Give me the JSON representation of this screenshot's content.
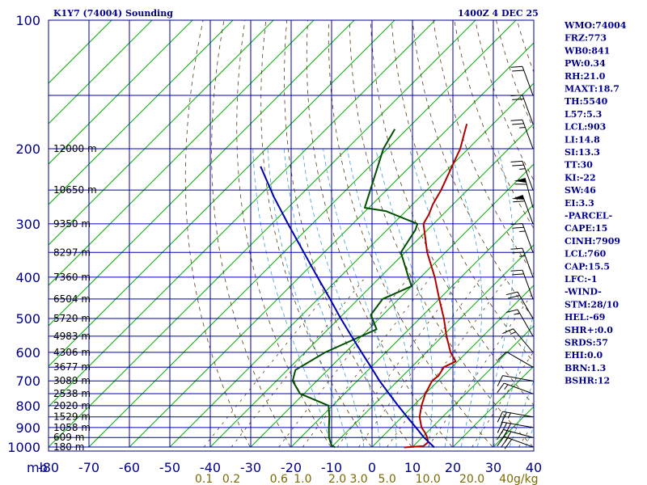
{
  "header": {
    "station": "K1Y7 (74004) Sounding",
    "time": "1400Z  4 DEC 25"
  },
  "indices": [
    "WMO:74004",
    "FRZ:773",
    "WB0:841",
    "PW:0.34",
    "RH:21.0",
    "MAXT:18.7",
    "TH:5540",
    "L57:5.3",
    "LCL:903",
    "LI:14.8",
    "SI:13.3",
    "TT:30",
    "KI:-22",
    "SW:46",
    "EI:3.3",
    "-PARCEL-",
    "CAPE:15",
    "CINH:7909",
    "LCL:760",
    "CAP:15.5",
    "LFC:-1",
    "-WIND-",
    "STM:28/10",
    "HEL:-69",
    "SHR+:0.0",
    "SRDS:57",
    "EHI:0.0",
    "BRN:1.3",
    "BSHR:12"
  ],
  "chart_data": {
    "type": "line",
    "title": "K1Y7 (74004) Sounding",
    "subtitle": "1400Z  4 DEC 25",
    "xlabel": "",
    "ylabel": "mb",
    "x_unit": "°C (skewed)",
    "xlim": [
      -80,
      40
    ],
    "ylim": [
      1000,
      100
    ],
    "y_scale": "log",
    "x_ticks": [
      -80,
      -70,
      -60,
      -50,
      -40,
      -30,
      -20,
      -10,
      0,
      10,
      20,
      30,
      40
    ],
    "pressure_ticks": [
      100,
      200,
      300,
      400,
      500,
      600,
      700,
      800,
      900,
      1000
    ],
    "height_labels": [
      {
        "p": 200,
        "label": "12000 m"
      },
      {
        "p": 250,
        "label": "10650 m"
      },
      {
        "p": 300,
        "label": "9350 m"
      },
      {
        "p": 350,
        "label": "8297 m"
      },
      {
        "p": 400,
        "label": "7360 m"
      },
      {
        "p": 450,
        "label": "6504 m"
      },
      {
        "p": 500,
        "label": "5720 m"
      },
      {
        "p": 550,
        "label": "4983 m"
      },
      {
        "p": 600,
        "label": "4306 m"
      },
      {
        "p": 650,
        "label": "3677 m"
      },
      {
        "p": 700,
        "label": "3089 m"
      },
      {
        "p": 750,
        "label": "2538 m"
      },
      {
        "p": 800,
        "label": "2020 m"
      },
      {
        "p": 850,
        "label": "1529 m"
      },
      {
        "p": 900,
        "label": "1058 m"
      },
      {
        "p": 950,
        "label": "609 m"
      },
      {
        "p": 1000,
        "label": "180 m"
      }
    ],
    "mixing_ratio_labels": [
      "0.1",
      "0.2",
      "0.6",
      "1.0",
      "2.0",
      "3.0",
      "5.0",
      "10.0",
      "20.0",
      "40g/kg"
    ],
    "series": [
      {
        "name": "",
        "color": "#b00000",
        "points": [
          {
            "p": 1002,
            "t": 8.0
          },
          {
            "p": 995,
            "t": 12.5
          },
          {
            "p": 975,
            "t": 12.7
          },
          {
            "p": 950,
            "t": 11.3
          },
          {
            "p": 925,
            "t": 9.5
          },
          {
            "p": 900,
            "t": 7.4
          },
          {
            "p": 850,
            "t": 4.3
          },
          {
            "p": 800,
            "t": 2.0
          },
          {
            "p": 750,
            "t": 0.0
          },
          {
            "p": 700,
            "t": -1.5
          },
          {
            "p": 680,
            "t": -1.2
          },
          {
            "p": 650,
            "t": -2.0
          },
          {
            "p": 630,
            "t": -0.5
          },
          {
            "p": 600,
            "t": -4.0
          },
          {
            "p": 550,
            "t": -9.0
          },
          {
            "p": 500,
            "t": -14.0
          },
          {
            "p": 450,
            "t": -20.0
          },
          {
            "p": 400,
            "t": -26.5
          },
          {
            "p": 350,
            "t": -34.5
          },
          {
            "p": 300,
            "t": -42.5
          },
          {
            "p": 285,
            "t": -43.5
          },
          {
            "p": 270,
            "t": -45.0
          },
          {
            "p": 250,
            "t": -46.5
          },
          {
            "p": 200,
            "t": -52.0
          },
          {
            "p": 175,
            "t": -56.5
          }
        ]
      },
      {
        "name": "",
        "color": "#005000",
        "points": [
          {
            "p": 1002,
            "t": -9.0
          },
          {
            "p": 990,
            "t": -10.5
          },
          {
            "p": 950,
            "t": -13.0
          },
          {
            "p": 900,
            "t": -15.5
          },
          {
            "p": 850,
            "t": -18.0
          },
          {
            "p": 800,
            "t": -21.0
          },
          {
            "p": 750,
            "t": -31.0
          },
          {
            "p": 700,
            "t": -36.0
          },
          {
            "p": 660,
            "t": -38.0
          },
          {
            "p": 600,
            "t": -35.0
          },
          {
            "p": 530,
            "t": -28.0
          },
          {
            "p": 490,
            "t": -33.0
          },
          {
            "p": 450,
            "t": -34.0
          },
          {
            "p": 420,
            "t": -30.0
          },
          {
            "p": 400,
            "t": -33.0
          },
          {
            "p": 350,
            "t": -41.0
          },
          {
            "p": 310,
            "t": -43.0
          },
          {
            "p": 300,
            "t": -44.0
          },
          {
            "p": 280,
            "t": -55.0
          },
          {
            "p": 275,
            "t": -61.0
          },
          {
            "p": 250,
            "t": -64.0
          },
          {
            "p": 200,
            "t": -71.0
          },
          {
            "p": 180,
            "t": -73.0
          }
        ]
      },
      {
        "name": "",
        "color": "#0000b0",
        "points": [
          {
            "p": 1002,
            "t": 15.5
          },
          {
            "p": 950,
            "t": 10.5
          },
          {
            "p": 900,
            "t": 6.0
          },
          {
            "p": 850,
            "t": 1.2
          },
          {
            "p": 800,
            "t": -3.8
          },
          {
            "p": 750,
            "t": -9.0
          },
          {
            "p": 700,
            "t": -14.5
          },
          {
            "p": 650,
            "t": -20.0
          },
          {
            "p": 600,
            "t": -26.0
          },
          {
            "p": 550,
            "t": -32.5
          },
          {
            "p": 500,
            "t": -39.5
          },
          {
            "p": 450,
            "t": -47.0
          },
          {
            "p": 400,
            "t": -55.5
          },
          {
            "p": 350,
            "t": -65.0
          },
          {
            "p": 300,
            "t": -76.0
          },
          {
            "p": 260,
            "t": -86.0
          },
          {
            "p": 220,
            "t": -97.0
          }
        ]
      }
    ],
    "wind_barbs": [
      {
        "p": 1000,
        "dir": 290,
        "spd": 30
      },
      {
        "p": 950,
        "dir": 285,
        "spd": 30
      },
      {
        "p": 900,
        "dir": 280,
        "spd": 30
      },
      {
        "p": 850,
        "dir": 280,
        "spd": 25
      },
      {
        "p": 750,
        "dir": 290,
        "spd": 15
      },
      {
        "p": 700,
        "dir": 280,
        "spd": 10
      },
      {
        "p": 650,
        "dir": 300,
        "spd": 10
      },
      {
        "p": 600,
        "dir": 320,
        "spd": 15
      },
      {
        "p": 550,
        "dir": 330,
        "spd": 15
      },
      {
        "p": 500,
        "dir": 330,
        "spd": 20
      },
      {
        "p": 450,
        "dir": 340,
        "spd": 20
      },
      {
        "p": 400,
        "dir": 340,
        "spd": 25
      },
      {
        "p": 350,
        "dir": 340,
        "spd": 25
      },
      {
        "p": 300,
        "dir": 340,
        "spd": 60
      },
      {
        "p": 275,
        "dir": 345,
        "spd": 60
      },
      {
        "p": 250,
        "dir": 340,
        "spd": 25
      },
      {
        "p": 200,
        "dir": 340,
        "spd": 25
      },
      {
        "p": 175,
        "dir": 340,
        "spd": 20
      },
      {
        "p": 150,
        "dir": 340,
        "spd": 20
      }
    ]
  }
}
